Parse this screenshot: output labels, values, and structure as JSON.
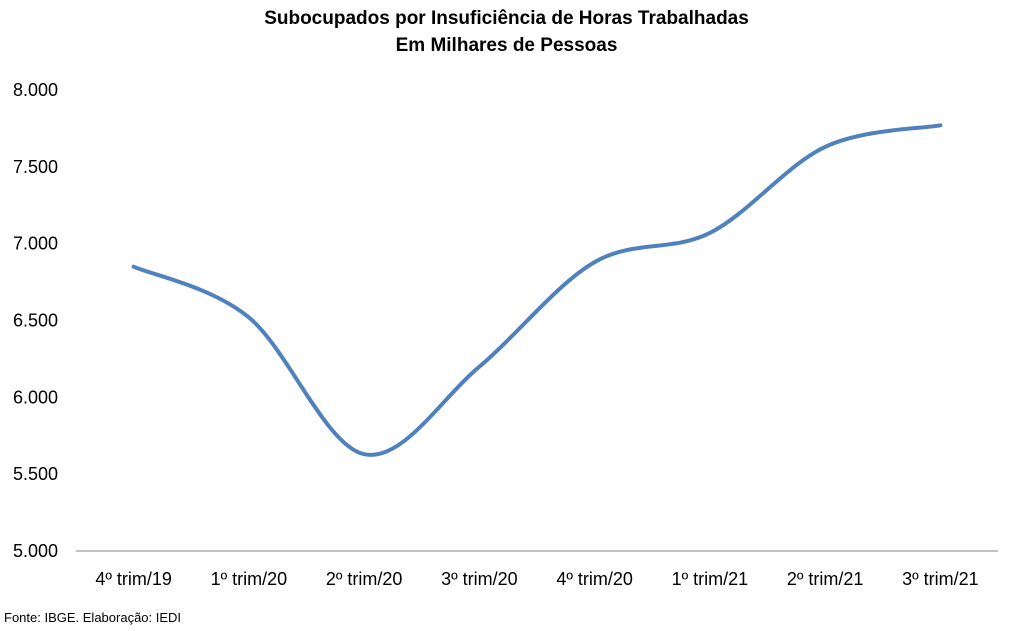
{
  "chart_data": {
    "type": "line",
    "title": "Subocupados por Insuficiência de Horas Trabalhadas",
    "subtitle": "Em Milhares de Pessoas",
    "xlabel": "",
    "ylabel": "",
    "categories": [
      "4º trim/19",
      "1º trim/20",
      "2º trim/20",
      "3º trim/20",
      "4º trim/20",
      "1º trim/21",
      "2º trim/21",
      "3º trim/21"
    ],
    "series": [
      {
        "values": [
          6850,
          6520,
          5630,
          6200,
          6880,
          7070,
          7630,
          7770
        ],
        "color": "#4F81BD"
      }
    ],
    "ylim": [
      5000,
      8000
    ],
    "yticks": [
      "5.000",
      "5.500",
      "6.000",
      "6.500",
      "7.000",
      "7.500",
      "8.000"
    ],
    "grid": false,
    "legend": "none",
    "source": "Fonte: IBGE. Elaboração: IEDI"
  }
}
